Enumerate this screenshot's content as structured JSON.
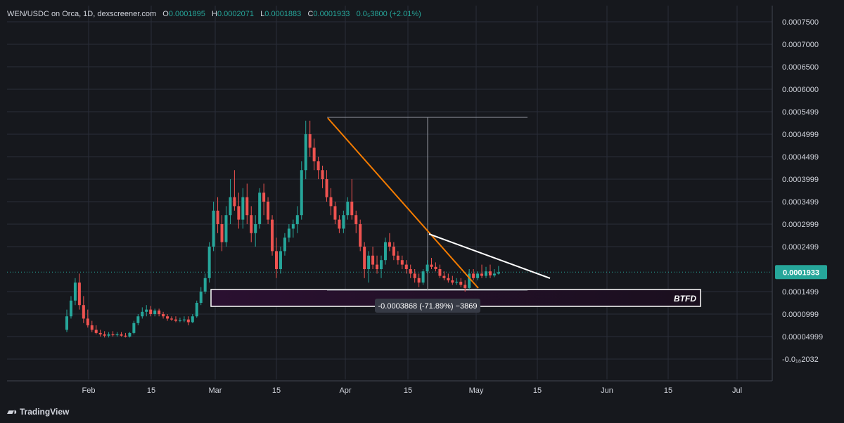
{
  "header": {
    "symbol": "WEN/USDC on Orca, 1D, dexscreener.com",
    "o_label": "O",
    "o_value": "0.0001895",
    "h_label": "H",
    "h_value": "0.0002071",
    "l_label": "L",
    "l_value": "0.0001883",
    "c_label": "C",
    "c_value": "0.0001933",
    "change": "0.0₅3800 (+2.01%)"
  },
  "watermark": {
    "text": "TradingView",
    "icon": "tradingview-logo-icon"
  },
  "colors": {
    "up": "#26a69a",
    "down": "#ef5350",
    "background": "#16181d",
    "trendline": "#f57c00",
    "box": "#ffffff"
  },
  "chart_data": {
    "type": "candlestick",
    "y_axis_labels": [
      "0.0007500",
      "0.0007000",
      "0.0006500",
      "0.0006000",
      "0.0005499",
      "0.0004999",
      "0.0004499",
      "0.0003999",
      "0.0003499",
      "0.0002999",
      "0.0002499",
      "0.0001499",
      "0.0000999",
      "0.00004999",
      "-0.0₁₈2032"
    ],
    "x_axis_labels": [
      "Feb",
      "15",
      "Mar",
      "15",
      "Apr",
      "15",
      "May",
      "15",
      "Jun",
      "15",
      "Jul"
    ],
    "last_price": "0.0001933",
    "candles_start": "2024-01-26",
    "candles": [
      [
        6.5e-05,
        0.00011,
        6e-05,
        9.5e-05
      ],
      [
        9.5e-05,
        0.00014,
        9e-05,
        0.00013
      ],
      [
        0.00013,
        0.00018,
        0.00012,
        0.00017
      ],
      [
        0.00017,
        0.00019,
        0.00011,
        0.00012
      ],
      [
        0.00012,
        0.00014,
        8e-05,
        9e-05
      ],
      [
        9e-05,
        0.00011,
        7e-05,
        7.5e-05
      ],
      [
        7.5e-05,
        8.5e-05,
        6e-05,
        6.5e-05
      ],
      [
        6.5e-05,
        7.5e-05,
        5.5e-05,
        5.8e-05
      ],
      [
        5.8e-05,
        6.5e-05,
        5e-05,
        5.5e-05
      ],
      [
        5.5e-05,
        6.2e-05,
        4.8e-05,
        5.2e-05
      ],
      [
        5.2e-05,
        6e-05,
        4.8e-05,
        5.5e-05
      ],
      [
        5.5e-05,
        6.2e-05,
        5e-05,
        5.3e-05
      ],
      [
        5.3e-05,
        6e-05,
        5e-05,
        5.5e-05
      ],
      [
        5.5e-05,
        6e-05,
        5e-05,
        5.2e-05
      ],
      [
        5.2e-05,
        5.8e-05,
        4.8e-05,
        5e-05
      ],
      [
        5e-05,
        6e-05,
        4.8e-05,
        5.8e-05
      ],
      [
        5.8e-05,
        8.5e-05,
        5.5e-05,
        8e-05
      ],
      [
        8e-05,
        0.0001,
        7.5e-05,
        9.5e-05
      ],
      [
        9.5e-05,
        0.000115,
        9e-05,
        0.000105
      ],
      [
        0.000105,
        0.00012,
        9.5e-05,
        0.00011
      ],
      [
        0.00011,
        0.000118,
        9.5e-05,
        0.0001
      ],
      [
        0.0001,
        0.000112,
        9.5e-05,
        0.000108
      ],
      [
        0.000108,
        0.000112,
        9.5e-05,
        0.0001
      ],
      [
        0.0001,
        0.000105,
        9e-05,
        9.5e-05
      ],
      [
        9.5e-05,
        0.0001,
        8.5e-05,
        9e-05
      ],
      [
        9e-05,
        9.5e-05,
        8.5e-05,
        8.8e-05
      ],
      [
        8.8e-05,
        9.5e-05,
        8.2e-05,
        8.5e-05
      ],
      [
        8.5e-05,
        9.2e-05,
        8.2e-05,
        8.6e-05
      ],
      [
        8.6e-05,
        9.5e-05,
        8.2e-05,
        8.8e-05
      ],
      [
        8.8e-05,
        9.5e-05,
        7.5e-05,
        8.2e-05
      ],
      [
        8.2e-05,
        0.0001,
        8e-05,
        9.5e-05
      ],
      [
        9.5e-05,
        0.00013,
        9.2e-05,
        0.000125
      ],
      [
        0.000125,
        0.00016,
        0.00012,
        0.00015
      ],
      [
        0.00015,
        0.00019,
        0.000145,
        0.00018
      ],
      [
        0.00018,
        0.00026,
        0.00017,
        0.00025
      ],
      [
        0.00025,
        0.00035,
        0.00024,
        0.00033
      ],
      [
        0.00033,
        0.00036,
        0.00028,
        0.0003
      ],
      [
        0.0003,
        0.00032,
        0.00024,
        0.00026
      ],
      [
        0.00026,
        0.00034,
        0.00025,
        0.00032
      ],
      [
        0.00032,
        0.0004,
        0.0003,
        0.00036
      ],
      [
        0.00036,
        0.00042,
        0.00033,
        0.00034
      ],
      [
        0.00034,
        0.00037,
        0.00029,
        0.00031
      ],
      [
        0.00031,
        0.00038,
        0.00029,
        0.00036
      ],
      [
        0.00036,
        0.00039,
        0.0003,
        0.00032
      ],
      [
        0.00032,
        0.00034,
        0.00026,
        0.00028
      ],
      [
        0.00028,
        0.00032,
        0.00025,
        0.0003
      ],
      [
        0.0003,
        0.00038,
        0.00029,
        0.00037
      ],
      [
        0.00037,
        0.00039,
        0.00032,
        0.00035
      ],
      [
        0.00035,
        0.00036,
        0.0003,
        0.00031
      ],
      [
        0.00031,
        0.00032,
        0.00023,
        0.00024
      ],
      [
        0.00024,
        0.00027,
        0.00018,
        0.0002
      ],
      [
        0.0002,
        0.00025,
        0.00019,
        0.00024
      ],
      [
        0.00024,
        0.00028,
        0.00023,
        0.00027
      ],
      [
        0.00027,
        0.0003,
        0.00026,
        0.00029
      ],
      [
        0.00029,
        0.00031,
        0.00027,
        0.0003
      ],
      [
        0.0003,
        0.00034,
        0.00028,
        0.00032
      ],
      [
        0.00032,
        0.00044,
        0.00031,
        0.00042
      ],
      [
        0.00042,
        0.00053,
        0.0004,
        0.0005
      ],
      [
        0.0005,
        0.00053,
        0.00045,
        0.00047
      ],
      [
        0.00047,
        0.00049,
        0.00042,
        0.00044
      ],
      [
        0.00044,
        0.00045,
        0.0004,
        0.00042
      ],
      [
        0.00042,
        0.00043,
        0.00038,
        0.0004
      ],
      [
        0.0004,
        0.00042,
        0.00035,
        0.00036
      ],
      [
        0.00036,
        0.00038,
        0.00032,
        0.00034
      ],
      [
        0.00034,
        0.00035,
        0.0003,
        0.00031
      ],
      [
        0.00031,
        0.00032,
        0.00028,
        0.00029
      ],
      [
        0.00029,
        0.00033,
        0.00028,
        0.00032
      ],
      [
        0.00032,
        0.00036,
        0.00031,
        0.00035
      ],
      [
        0.00035,
        0.0004,
        0.00031,
        0.00032
      ],
      [
        0.00032,
        0.00033,
        0.00028,
        0.0003
      ],
      [
        0.0003,
        0.00031,
        0.00024,
        0.00025
      ],
      [
        0.00025,
        0.00026,
        0.00018,
        0.0002
      ],
      [
        0.0002,
        0.00024,
        0.00017,
        0.00023
      ],
      [
        0.00023,
        0.00025,
        0.0002,
        0.00021
      ],
      [
        0.00021,
        0.00023,
        0.00019,
        0.0002
      ],
      [
        0.0002,
        0.00023,
        0.00018,
        0.00022
      ],
      [
        0.00022,
        0.00027,
        0.00021,
        0.00026
      ],
      [
        0.00026,
        0.00028,
        0.00024,
        0.00025
      ],
      [
        0.00025,
        0.00026,
        0.00022,
        0.00023
      ],
      [
        0.00023,
        0.00024,
        0.00021,
        0.00022
      ],
      [
        0.00022,
        0.00023,
        0.0002,
        0.00021
      ],
      [
        0.00021,
        0.00022,
        0.00019,
        0.0002
      ],
      [
        0.0002,
        0.00021,
        0.00018,
        0.00019
      ],
      [
        0.00019,
        0.0002,
        0.00017,
        0.00018
      ],
      [
        0.00018,
        0.00019,
        0.00016,
        0.00017
      ],
      [
        0.00017,
        0.0002,
        0.000165,
        0.000195
      ],
      [
        0.000195,
        0.00022,
        0.00019,
        0.00021
      ],
      [
        0.00021,
        0.000225,
        0.0002,
        0.000205
      ],
      [
        0.000205,
        0.000215,
        0.000195,
        0.0002
      ],
      [
        0.0002,
        0.00021,
        0.00018,
        0.000185
      ],
      [
        0.000185,
        0.000195,
        0.000175,
        0.00018
      ],
      [
        0.00018,
        0.00019,
        0.00017,
        0.000175
      ],
      [
        0.000175,
        0.000185,
        0.000165,
        0.00017
      ],
      [
        0.00017,
        0.00018,
        0.000165,
        0.000172
      ],
      [
        0.000172,
        0.00018,
        0.00016,
        0.000165
      ],
      [
        0.000165,
        0.000175,
        0.00015,
        0.000158
      ],
      [
        0.000158,
        0.0002,
        0.000155,
        0.00019
      ],
      [
        0.00019,
        0.0002,
        0.000175,
        0.00018
      ],
      [
        0.00018,
        0.000195,
        0.000175,
        0.00019
      ],
      [
        0.00019,
        0.00021,
        0.00018,
        0.000185
      ],
      [
        0.000185,
        0.000205,
        0.00018,
        0.000195
      ],
      [
        0.000195,
        0.00021,
        0.00018,
        0.000186
      ],
      [
        0.000186,
        0.0002,
        0.000182,
        0.00019
      ],
      [
        0.00019,
        0.000207,
        0.000188,
        0.000193
      ]
    ],
    "annotations": {
      "measure_label": "-0.0003868 (-71.89%) −3869",
      "box_label": "BTFD"
    }
  }
}
